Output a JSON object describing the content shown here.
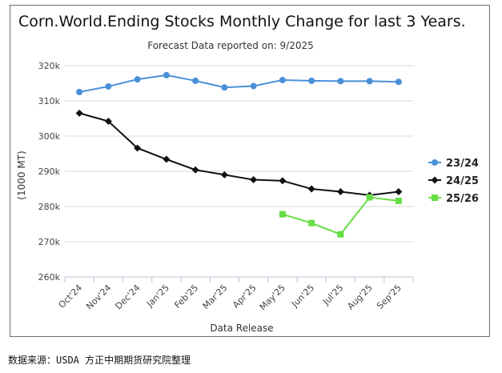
{
  "chart_data": {
    "type": "line",
    "title": "Corn.World.Ending Stocks Monthly Change for last 3 Years.",
    "subtitle": "Forecast Data reported on: 9/2025",
    "xlabel": "Data Release",
    "ylabel": "(1000 MT)",
    "ylim": [
      260,
      320
    ],
    "yticks": [
      260,
      270,
      280,
      290,
      300,
      310,
      320
    ],
    "ytick_labels": [
      "260k",
      "270k",
      "280k",
      "290k",
      "300k",
      "310k",
      "320k"
    ],
    "categories": [
      "Oct'24",
      "Nov'24",
      "Dec'24",
      "Jan'25",
      "Feb'25",
      "Mar'25",
      "Apr'25",
      "May'25",
      "Jun'25",
      "Jul'25",
      "Aug'25",
      "Sep'25"
    ],
    "grid": true,
    "legend_position": "right",
    "series": [
      {
        "name": "23/24",
        "color": "#4a90d9",
        "marker": "circle",
        "values": [
          312.5,
          314.1,
          316.1,
          317.3,
          315.7,
          313.8,
          314.2,
          315.9,
          315.7,
          315.6,
          315.6,
          315.4
        ]
      },
      {
        "name": "24/25",
        "color": "#111111",
        "marker": "diamond",
        "values": [
          306.5,
          304.2,
          296.6,
          293.4,
          290.4,
          289.0,
          287.6,
          287.3,
          285.0,
          284.2,
          283.2,
          284.2
        ]
      },
      {
        "name": "25/26",
        "color": "#66dd44",
        "marker": "square",
        "values": [
          null,
          null,
          null,
          null,
          null,
          null,
          null,
          277.8,
          275.3,
          272.1,
          282.6,
          281.6
        ]
      }
    ]
  },
  "source_note": "数据来源：USDA 方正中期期货研究院整理"
}
